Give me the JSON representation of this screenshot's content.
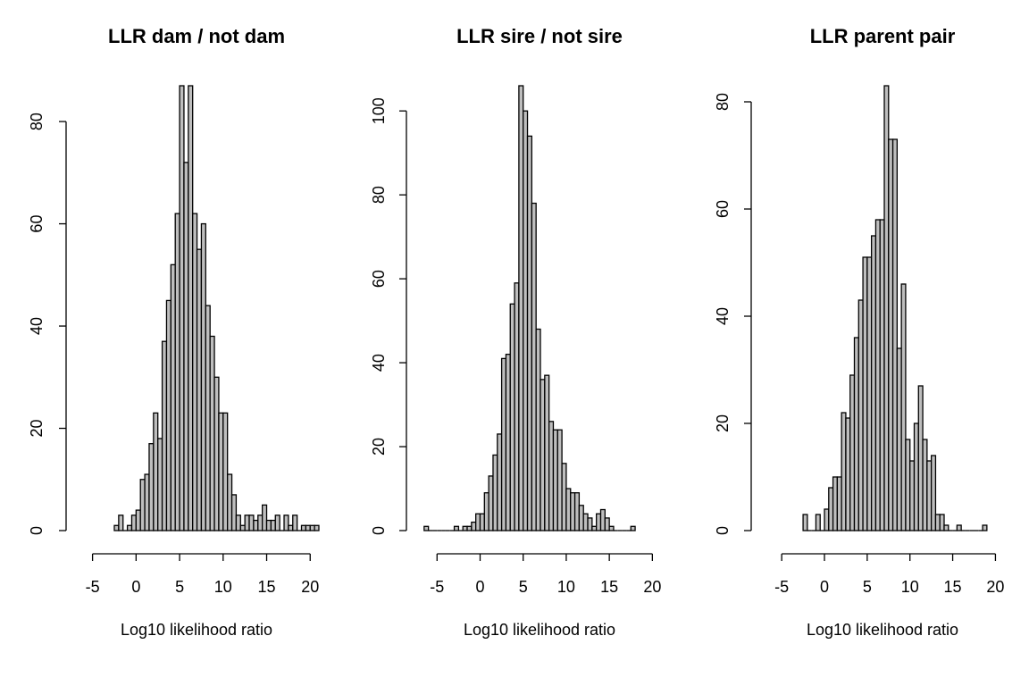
{
  "chart_data": [
    {
      "type": "histogram",
      "title": "LLR dam / not dam",
      "xlabel": "Log10 likelihood ratio",
      "ylabel": "",
      "xlim": [
        -6.5,
        21
      ],
      "ylim": [
        0,
        87
      ],
      "xticks": [
        -5,
        0,
        5,
        10,
        15,
        20
      ],
      "xtick_labels": [
        "-5",
        "0",
        "5",
        "10",
        "15",
        "20"
      ],
      "yticks": [
        0,
        20,
        40,
        60,
        80
      ],
      "ytick_labels": [
        "0",
        "20",
        "40",
        "60",
        "80"
      ],
      "bin_width": 0.5,
      "bin_start": -2.5,
      "values": [
        1,
        3,
        0,
        1,
        3,
        4,
        10,
        11,
        17,
        23,
        18,
        37,
        45,
        52,
        62,
        87,
        72,
        87,
        62,
        55,
        60,
        44,
        38,
        30,
        23,
        23,
        11,
        7,
        3,
        1,
        3,
        3,
        2,
        3,
        5,
        2,
        2,
        3,
        0,
        3,
        1,
        3,
        0,
        1,
        1,
        1,
        1
      ]
    },
    {
      "type": "histogram",
      "title": "LLR sire / not sire",
      "xlabel": "Log10 likelihood ratio",
      "ylabel": "",
      "xlim": [
        -7,
        21
      ],
      "ylim": [
        0,
        106
      ],
      "xticks": [
        -5,
        0,
        5,
        10,
        15,
        20
      ],
      "xtick_labels": [
        "-5",
        "0",
        "5",
        "10",
        "15",
        "20"
      ],
      "yticks": [
        0,
        20,
        40,
        60,
        80,
        100
      ],
      "ytick_labels": [
        "0",
        "20",
        "40",
        "60",
        "80",
        "100"
      ],
      "bin_width": 0.5,
      "bin_start": -6.5,
      "values": [
        1,
        0,
        0,
        0,
        0,
        0,
        0,
        1,
        0,
        1,
        1,
        2,
        4,
        4,
        9,
        13,
        18,
        23,
        41,
        42,
        54,
        59,
        106,
        100,
        94,
        78,
        48,
        36,
        37,
        26,
        24,
        24,
        16,
        10,
        9,
        9,
        6,
        4,
        3,
        1,
        4,
        5,
        3,
        1,
        0,
        0,
        0,
        0,
        1
      ]
    },
    {
      "type": "histogram",
      "title": "LLR parent pair",
      "xlabel": "Log10 likelihood ratio",
      "ylabel": "",
      "xlim": [
        -7,
        21
      ],
      "ylim": [
        0,
        83
      ],
      "xticks": [
        -5,
        0,
        5,
        10,
        15,
        20
      ],
      "xtick_labels": [
        "-5",
        "0",
        "5",
        "10",
        "15",
        "20"
      ],
      "yticks": [
        0,
        20,
        40,
        60,
        80
      ],
      "ytick_labels": [
        "0",
        "20",
        "40",
        "60",
        "80"
      ],
      "bin_width": 0.5,
      "bin_start": -2.5,
      "values": [
        3,
        0,
        0,
        3,
        0,
        4,
        8,
        10,
        10,
        22,
        21,
        29,
        36,
        43,
        51,
        51,
        55,
        58,
        58,
        83,
        73,
        73,
        34,
        46,
        17,
        13,
        20,
        27,
        17,
        13,
        14,
        3,
        3,
        1,
        0,
        0,
        1,
        0,
        0,
        0,
        0,
        0,
        1
      ]
    }
  ]
}
